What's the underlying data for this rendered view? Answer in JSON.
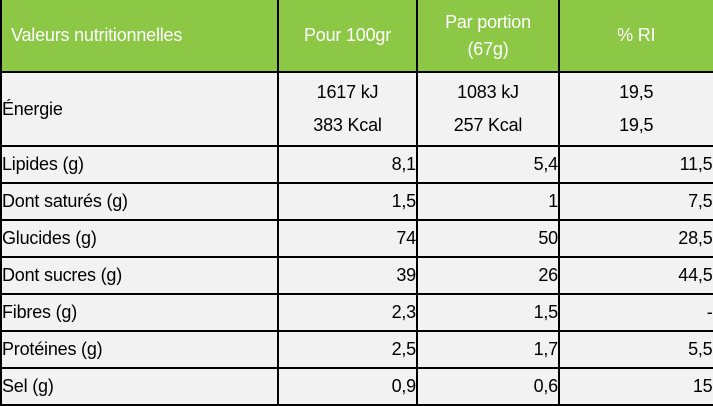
{
  "table": {
    "header": {
      "col1": "Valeurs nutritionnelles",
      "col2": "Pour 100gr",
      "col3_line1": "Par portion",
      "col3_line2": "(67g)",
      "col4": "% RI"
    },
    "energy": {
      "label": "Énergie",
      "per100_kj": "1617 kJ",
      "per100_kcal": "383 Kcal",
      "portion_kj": "1083 kJ",
      "portion_kcal": "257 Kcal",
      "ri_line1": "19,5",
      "ri_line2": "19,5"
    },
    "rows": [
      {
        "label": "Lipides (g)",
        "per100": "8,1",
        "portion": "5,4",
        "ri": "11,5"
      },
      {
        "label": "Dont saturés (g)",
        "per100": "1,5",
        "portion": "1",
        "ri": "7,5"
      },
      {
        "label": "Glucides (g)",
        "per100": "74",
        "portion": "50",
        "ri": "28,5"
      },
      {
        "label": "Dont sucres (g)",
        "per100": "39",
        "portion": "26",
        "ri": "44,5"
      },
      {
        "label": "Fibres (g)",
        "per100": "2,3",
        "portion": "1,5",
        "ri": "-"
      },
      {
        "label": "Protéines (g)",
        "per100": "2,5",
        "portion": "1,7",
        "ri": "5,5"
      },
      {
        "label": "Sel (g)",
        "per100": "0,9",
        "portion": "0,6",
        "ri": "15"
      }
    ],
    "colors": {
      "header_green": "#8CC846",
      "header_text": "#FFFFFF",
      "row_background": "#F2F2F2",
      "border": "#000000",
      "body_text": "#000000"
    }
  }
}
